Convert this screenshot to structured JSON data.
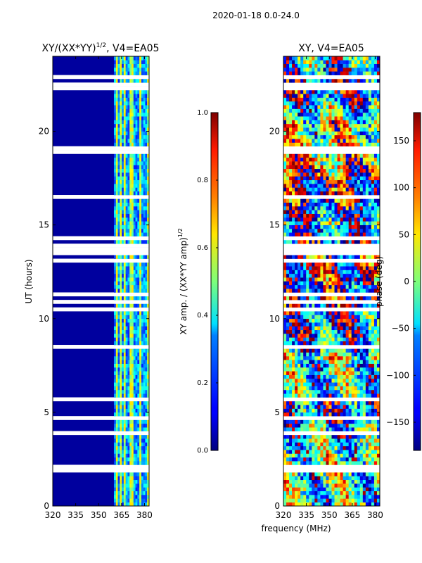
{
  "figure": {
    "suptitle": "2020-01-18 0.0-24.0",
    "xlabel": "frequency (MHz)",
    "ylabel": "UT (hours)"
  },
  "chart_data": [
    {
      "type": "heatmap",
      "title": "XY/(XX*YY)^1/2, V4=EA05",
      "title_main": "XY/(XX*YY)",
      "title_sup": "1/2",
      "title_tail": ", V4=EA05",
      "xlim": [
        320,
        383
      ],
      "ylim": [
        0,
        24
      ],
      "xticks": [
        320,
        335,
        350,
        365,
        380
      ],
      "yticks": [
        0,
        5,
        10,
        15,
        20
      ],
      "colormap": "jet",
      "colorbar": {
        "range": [
          0.0,
          1.0
        ],
        "ticks": [
          "0.0",
          "0.2",
          "0.4",
          "0.6",
          "0.8",
          "1.0"
        ],
        "label_main": "XY amp. / (XX*YY amp)",
        "label_sup": "1/2"
      },
      "description_values": {
        "baseline_value": 0.03,
        "active_band_MHz": [
          360,
          383
        ],
        "active_band_value_range": [
          0.2,
          0.6
        ]
      }
    },
    {
      "type": "heatmap",
      "title": "XY, V4=EA05",
      "xlim": [
        320,
        383
      ],
      "ylim": [
        0,
        24
      ],
      "xticks": [
        320,
        335,
        350,
        365,
        380
      ],
      "yticks": [
        0,
        5,
        10,
        15,
        20
      ],
      "colormap": "jet",
      "colorbar": {
        "range": [
          -180,
          180
        ],
        "ticks": [
          "150",
          "100",
          "50",
          "0",
          "−50",
          "−100",
          "−150"
        ],
        "tick_values": [
          150,
          100,
          50,
          0,
          -50,
          -100,
          -150
        ],
        "label": "phase (deg)"
      }
    }
  ]
}
